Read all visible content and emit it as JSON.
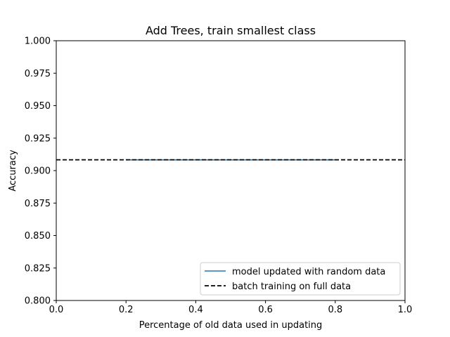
{
  "chart_data": {
    "type": "line",
    "title": "Add Trees, train smallest class",
    "xlabel": "Percentage of old data used in updating",
    "ylabel": "Accuracy",
    "xlim": [
      0.0,
      1.0
    ],
    "ylim": [
      0.8,
      1.0
    ],
    "xticks": [
      "0.0",
      "0.2",
      "0.4",
      "0.6",
      "0.8",
      "1.0"
    ],
    "yticks": [
      "0.800",
      "0.825",
      "0.850",
      "0.875",
      "0.900",
      "0.925",
      "0.950",
      "0.975",
      "1.000"
    ],
    "grid": false,
    "legend_position": "lower-right",
    "series": [
      {
        "name": "model updated with random data",
        "style": "solid",
        "color": "#1f77b4",
        "x": [
          0.2,
          0.4,
          0.6,
          0.8
        ],
        "y": [
          0.9083,
          0.9083,
          0.9083,
          0.9083
        ]
      }
    ],
    "reference_lines": [
      {
        "name": "batch training on full data",
        "style": "dashed",
        "color": "#000000",
        "y": 0.9083
      }
    ]
  }
}
